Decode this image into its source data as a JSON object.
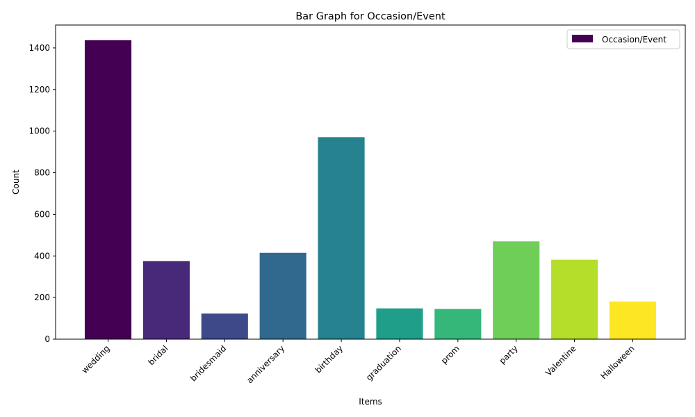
{
  "chart_data": {
    "type": "bar",
    "title": "Bar Graph for Occasion/Event",
    "xlabel": "Items",
    "ylabel": "Count",
    "categories": [
      "wedding",
      "bridal",
      "bridesmaid",
      "anniversary",
      "birthday",
      "graduation",
      "prom",
      "party",
      "Valentine",
      "Halloween"
    ],
    "series": [
      {
        "name": "Occasion/Event",
        "values": [
          1437,
          375,
          123,
          415,
          971,
          148,
          145,
          470,
          382,
          181
        ]
      }
    ],
    "colors": [
      "#440154",
      "#482878",
      "#3e4989",
      "#31688e",
      "#26828e",
      "#1f9e89",
      "#35b779",
      "#6ece58",
      "#b5de2b",
      "#fde725"
    ],
    "ylim": [
      0,
      1510
    ],
    "yticks": [
      0,
      200,
      400,
      600,
      800,
      1000,
      1200,
      1400
    ],
    "grid": false,
    "legend_position": "top-right"
  }
}
